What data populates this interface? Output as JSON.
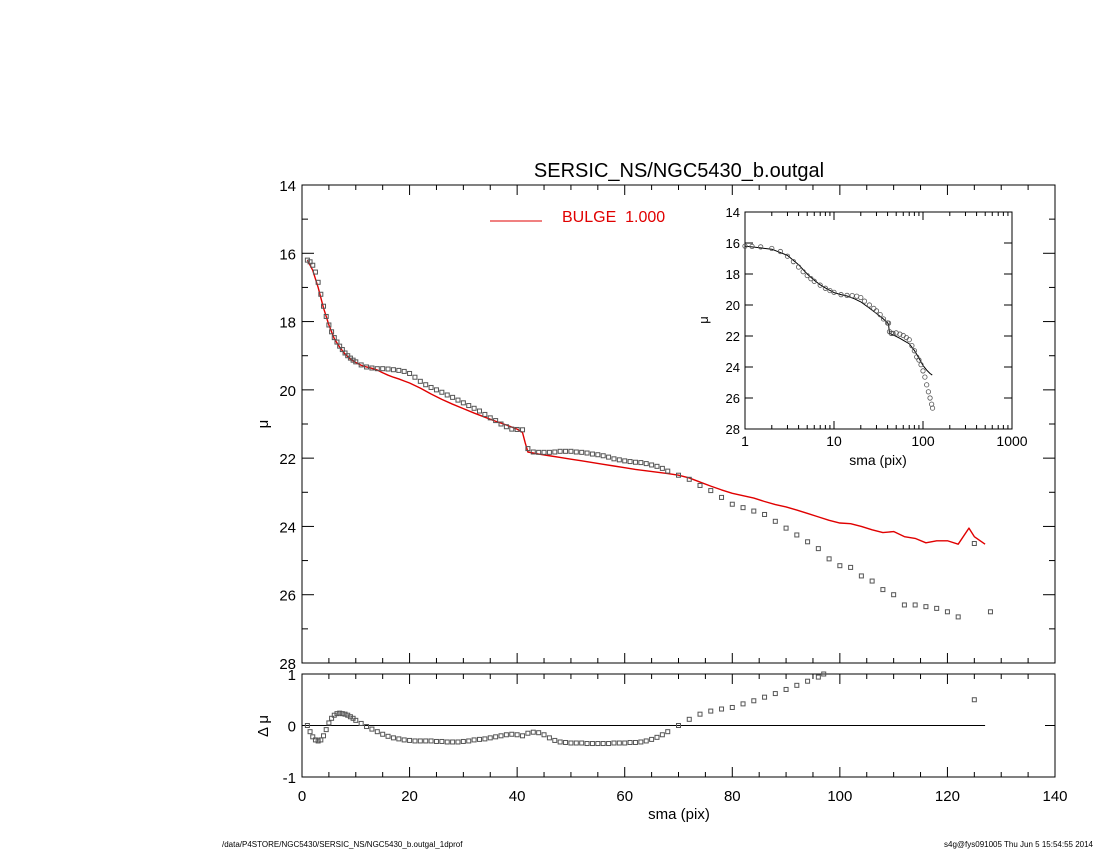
{
  "title": "SERSIC_NS/NGC5430_b.outgal",
  "footer": {
    "left": "/data/P4STORE/NGC5430/SERSIC_NS/NGC5430_b.outgal_1dprof",
    "right": "s4g@fys091005  Thu Jun  5 15:54:55 2014"
  },
  "colors": {
    "model": "#e00000",
    "data": "#555555",
    "axes": "#000000"
  },
  "chart_data": [
    {
      "panel": "main",
      "type": "scatter",
      "title": "SERSIC_NS/NGC5430_b.outgal",
      "xlabel": "",
      "ylabel": "μ",
      "xlim": [
        0,
        140
      ],
      "ylim": [
        28,
        14
      ],
      "y_inverted": true,
      "xticks": [],
      "yticks": [
        "14",
        "16",
        "18",
        "20",
        "22",
        "24",
        "26",
        "28"
      ],
      "legend": {
        "position": "top-center",
        "entries": [
          {
            "label": "BULGE  1.000",
            "color": "#e00000"
          }
        ]
      },
      "series": [
        {
          "name": "BULGE  1.000",
          "kind": "line",
          "x": [
            1,
            2,
            3,
            4,
            5,
            6,
            7,
            8,
            9,
            10,
            11,
            12,
            13,
            14,
            15,
            16,
            17,
            18,
            19,
            20,
            22,
            24,
            26,
            28,
            30,
            32,
            34,
            36,
            38,
            40,
            41,
            41.5,
            42,
            44,
            46,
            48,
            50,
            52,
            54,
            56,
            58,
            60,
            62,
            64,
            66,
            68,
            70,
            72,
            74,
            76,
            78,
            80,
            82,
            84,
            86,
            88,
            90,
            92,
            94,
            96,
            98,
            100,
            102,
            104,
            106,
            108,
            110,
            112,
            114,
            116,
            118,
            120,
            122,
            124,
            125,
            127
          ],
          "y": [
            16.2,
            16.5,
            17.0,
            17.6,
            18.1,
            18.5,
            18.75,
            18.95,
            19.1,
            19.2,
            19.28,
            19.33,
            19.37,
            19.42,
            19.5,
            19.57,
            19.63,
            19.68,
            19.74,
            19.8,
            19.95,
            20.12,
            20.28,
            20.42,
            20.55,
            20.68,
            20.8,
            20.92,
            21.03,
            21.15,
            21.25,
            21.55,
            21.82,
            21.88,
            21.93,
            21.98,
            22.03,
            22.08,
            22.13,
            22.18,
            22.23,
            22.28,
            22.33,
            22.37,
            22.41,
            22.45,
            22.5,
            22.58,
            22.7,
            22.82,
            22.93,
            23.03,
            23.1,
            23.17,
            23.27,
            23.36,
            23.43,
            23.52,
            23.62,
            23.72,
            23.82,
            23.9,
            23.92,
            24.0,
            24.1,
            24.18,
            24.15,
            24.3,
            24.35,
            24.48,
            24.42,
            24.42,
            24.52,
            24.05,
            24.3,
            24.52
          ]
        },
        {
          "name": "",
          "kind": "markers",
          "x": [
            1,
            1.5,
            2,
            2.5,
            3,
            3.5,
            4,
            4.5,
            5,
            5.5,
            6,
            6.5,
            7,
            7.5,
            8,
            8.5,
            9,
            9.5,
            10,
            11,
            12,
            13,
            14,
            15,
            16,
            17,
            18,
            19,
            20,
            21,
            22,
            23,
            24,
            25,
            26,
            27,
            28,
            29,
            30,
            31,
            32,
            33,
            34,
            35,
            36,
            37,
            38,
            39,
            40,
            41,
            42,
            43,
            44,
            45,
            46,
            47,
            48,
            49,
            50,
            51,
            52,
            53,
            54,
            55,
            56,
            57,
            58,
            59,
            60,
            61,
            62,
            63,
            64,
            65,
            66,
            67,
            68,
            70,
            72,
            74,
            76,
            78,
            80,
            82,
            84,
            86,
            88,
            90,
            92,
            94,
            96,
            98,
            100,
            102,
            104,
            106,
            108,
            110,
            112,
            114,
            116,
            118,
            120,
            122,
            125,
            128
          ],
          "y": [
            16.2,
            16.25,
            16.35,
            16.55,
            16.85,
            17.2,
            17.55,
            17.85,
            18.1,
            18.3,
            18.47,
            18.6,
            18.72,
            18.82,
            18.92,
            19.0,
            19.07,
            19.13,
            19.18,
            19.27,
            19.33,
            19.36,
            19.38,
            19.38,
            19.39,
            19.41,
            19.43,
            19.46,
            19.52,
            19.63,
            19.75,
            19.85,
            19.93,
            20.0,
            20.07,
            20.15,
            20.22,
            20.3,
            20.38,
            20.46,
            20.54,
            20.62,
            20.72,
            20.82,
            20.9,
            21.0,
            21.08,
            21.15,
            21.16,
            21.17,
            21.72,
            21.82,
            21.83,
            21.83,
            21.83,
            21.82,
            21.8,
            21.8,
            21.8,
            21.82,
            21.83,
            21.85,
            21.88,
            21.9,
            21.93,
            21.97,
            22.02,
            22.05,
            22.08,
            22.1,
            22.12,
            22.13,
            22.16,
            22.2,
            22.24,
            22.3,
            22.38,
            22.5,
            22.62,
            22.8,
            22.95,
            23.15,
            23.35,
            23.45,
            23.55,
            23.65,
            23.85,
            24.05,
            24.25,
            24.45,
            24.65,
            24.95,
            25.15,
            25.2,
            25.45,
            25.6,
            25.85,
            26.0,
            26.3,
            26.3,
            26.35,
            26.4,
            26.5,
            26.65,
            24.5,
            26.5
          ]
        }
      ]
    },
    {
      "panel": "residual",
      "type": "scatter",
      "xlabel": "sma (pix)",
      "ylabel": "Δ μ",
      "xlim": [
        0,
        140
      ],
      "ylim": [
        -1,
        1
      ],
      "xticks": [
        "0",
        "20",
        "40",
        "60",
        "80",
        "100",
        "120",
        "140"
      ],
      "yticks": [
        "-1",
        "0",
        "1"
      ],
      "series": [
        {
          "name": "",
          "kind": "markers",
          "x": [
            1,
            1.5,
            2,
            2.5,
            3,
            3.5,
            4,
            4.5,
            5,
            5.5,
            6,
            6.5,
            7,
            7.5,
            8,
            8.5,
            9,
            9.5,
            10,
            11,
            12,
            13,
            14,
            15,
            16,
            17,
            18,
            19,
            20,
            21,
            22,
            23,
            24,
            25,
            26,
            27,
            28,
            29,
            30,
            31,
            32,
            33,
            34,
            35,
            36,
            37,
            38,
            39,
            40,
            41,
            42,
            43,
            44,
            45,
            46,
            47,
            48,
            49,
            50,
            51,
            52,
            53,
            54,
            55,
            56,
            57,
            58,
            59,
            60,
            61,
            62,
            63,
            64,
            65,
            66,
            67,
            68,
            70,
            72,
            74,
            76,
            78,
            80,
            82,
            84,
            86,
            88,
            90,
            92,
            94,
            96,
            97,
            125
          ],
          "y": [
            0,
            -0.12,
            -0.22,
            -0.28,
            -0.3,
            -0.28,
            -0.2,
            -0.08,
            0.05,
            0.14,
            0.2,
            0.23,
            0.24,
            0.23,
            0.22,
            0.2,
            0.17,
            0.14,
            0.1,
            0.04,
            -0.02,
            -0.07,
            -0.12,
            -0.17,
            -0.21,
            -0.24,
            -0.26,
            -0.28,
            -0.29,
            -0.3,
            -0.3,
            -0.3,
            -0.3,
            -0.31,
            -0.31,
            -0.32,
            -0.32,
            -0.32,
            -0.31,
            -0.3,
            -0.28,
            -0.27,
            -0.26,
            -0.24,
            -0.22,
            -0.2,
            -0.18,
            -0.17,
            -0.18,
            -0.2,
            -0.15,
            -0.13,
            -0.14,
            -0.18,
            -0.24,
            -0.29,
            -0.32,
            -0.33,
            -0.34,
            -0.34,
            -0.34,
            -0.35,
            -0.35,
            -0.35,
            -0.35,
            -0.35,
            -0.34,
            -0.34,
            -0.34,
            -0.33,
            -0.33,
            -0.32,
            -0.3,
            -0.27,
            -0.23,
            -0.18,
            -0.12,
            0,
            0.12,
            0.22,
            0.28,
            0.32,
            0.35,
            0.42,
            0.48,
            0.55,
            0.62,
            0.7,
            0.78,
            0.86,
            0.94,
            1.0,
            0.5
          ]
        }
      ]
    },
    {
      "panel": "inset",
      "type": "scatter",
      "xlabel": "sma (pix)",
      "ylabel": "μ",
      "x_scale": "log",
      "xlim": [
        1,
        1000
      ],
      "ylim": [
        28,
        14
      ],
      "y_inverted": true,
      "xticks": [
        "1",
        "10",
        "100",
        "1000"
      ],
      "yticks": [
        "14",
        "16",
        "18",
        "20",
        "22",
        "24",
        "26",
        "28"
      ],
      "series": [
        {
          "name": "",
          "kind": "line",
          "x": [
            1,
            2,
            3,
            4,
            5,
            6,
            7,
            8,
            10,
            12,
            14,
            17,
            20,
            25,
            30,
            35,
            40,
            41,
            42,
            45,
            50,
            55,
            60,
            70,
            80,
            90,
            100,
            110,
            120,
            127
          ],
          "y": [
            16.2,
            16.4,
            16.8,
            17.4,
            18.0,
            18.4,
            18.7,
            18.9,
            19.2,
            19.33,
            19.42,
            19.6,
            19.8,
            20.2,
            20.55,
            20.85,
            21.15,
            21.25,
            21.82,
            21.9,
            22.03,
            22.15,
            22.28,
            22.5,
            22.93,
            23.43,
            23.9,
            24.2,
            24.42,
            24.52
          ]
        },
        {
          "name": "",
          "kind": "markers",
          "x": [
            1,
            1.2,
            1.5,
            2,
            2.5,
            3,
            3.5,
            4,
            4.5,
            5,
            5.5,
            6,
            7,
            8,
            9,
            10,
            12,
            14,
            16,
            18,
            20,
            22,
            25,
            28,
            30,
            33,
            36,
            40,
            41,
            42,
            44,
            46,
            50,
            55,
            60,
            65,
            70,
            75,
            80,
            85,
            90,
            95,
            100,
            105,
            110,
            115,
            120,
            125,
            128
          ],
          "y": [
            16.2,
            16.22,
            16.25,
            16.35,
            16.55,
            16.85,
            17.2,
            17.55,
            17.85,
            18.1,
            18.3,
            18.47,
            18.72,
            18.92,
            19.07,
            19.18,
            19.33,
            19.38,
            19.39,
            19.43,
            19.52,
            19.75,
            20.0,
            20.22,
            20.38,
            20.62,
            20.9,
            21.16,
            21.17,
            21.72,
            21.83,
            21.83,
            21.8,
            21.88,
            21.97,
            22.1,
            22.24,
            22.62,
            22.95,
            23.35,
            23.55,
            23.85,
            24.25,
            24.65,
            25.15,
            25.6,
            26.0,
            26.4,
            26.65
          ]
        }
      ]
    }
  ]
}
